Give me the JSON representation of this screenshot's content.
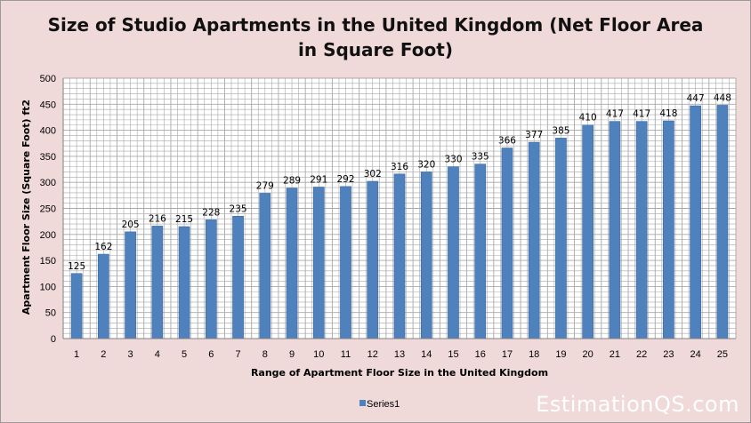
{
  "chart_data": {
    "type": "bar",
    "title_line1": "Size of Studio Apartments in the United Kingdom (Net Floor Area",
    "title_line2": "in Square Foot)",
    "xlabel": "Range of Apartment Floor Size in the United Kingdom",
    "ylabel": "Apartment Floor Size (Square Foot) ft2",
    "categories": [
      "1",
      "2",
      "3",
      "4",
      "5",
      "6",
      "7",
      "8",
      "9",
      "10",
      "11",
      "12",
      "13",
      "14",
      "15",
      "16",
      "17",
      "18",
      "19",
      "20",
      "21",
      "22",
      "23",
      "24",
      "25"
    ],
    "series": [
      {
        "name": "Series1",
        "values": [
          125,
          162,
          205,
          216,
          215,
          228,
          235,
          279,
          289,
          291,
          292,
          302,
          316,
          320,
          330,
          335,
          366,
          377,
          385,
          410,
          417,
          417,
          418,
          447,
          448
        ],
        "color": "#4f81bd"
      }
    ],
    "ylim": [
      0,
      500
    ],
    "yticks": [
      0,
      50,
      100,
      150,
      200,
      250,
      300,
      350,
      400,
      450,
      500
    ],
    "grid": "major and minor gridlines",
    "legend_position": "bottom",
    "data_labels": true
  },
  "watermark": "EstimationQS.com",
  "colors": {
    "background": "#efd9d9",
    "plot_background": "#ffffff",
    "bar": "#4f81bd",
    "bar_dark": "#3b6aa3",
    "grid": "#a8a8a8",
    "watermark": "#ffffff"
  }
}
